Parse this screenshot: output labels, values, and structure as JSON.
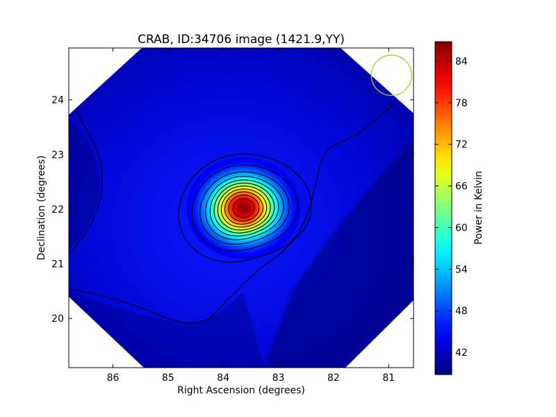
{
  "chart_data": {
    "type": "heatmap",
    "title": "CRAB, ID:34706 image (1421.9,YY)",
    "xlabel": "Right Ascension (degrees)",
    "ylabel": "Declination (degrees)",
    "xlim": [
      86.8,
      80.55
    ],
    "ylim": [
      19.1,
      24.95
    ],
    "x_ticks": [
      86,
      85,
      84,
      83,
      82,
      81
    ],
    "y_ticks": [
      20,
      21,
      22,
      23,
      24
    ],
    "colorbar": {
      "label": "Power in Kelvin",
      "range": [
        38.8,
        86.8
      ],
      "ticks": [
        42,
        48,
        54,
        60,
        66,
        72,
        78,
        84
      ],
      "colormap": "jet"
    },
    "source": {
      "ra": 83.63,
      "dec": 22.02,
      "peak_kelvin": 86.5,
      "background_kelvin": 42
    },
    "contour_levels": [
      43,
      46,
      50,
      54,
      58,
      62,
      66,
      70,
      74,
      78,
      82
    ],
    "beam_circle": {
      "ra": 80.95,
      "dec": 24.45,
      "color": "#bfbf26"
    },
    "colors": {
      "field_low": "#00007f",
      "field_mid": "#0000e0",
      "beam": "#bfbf26",
      "contour": "#000000"
    }
  }
}
